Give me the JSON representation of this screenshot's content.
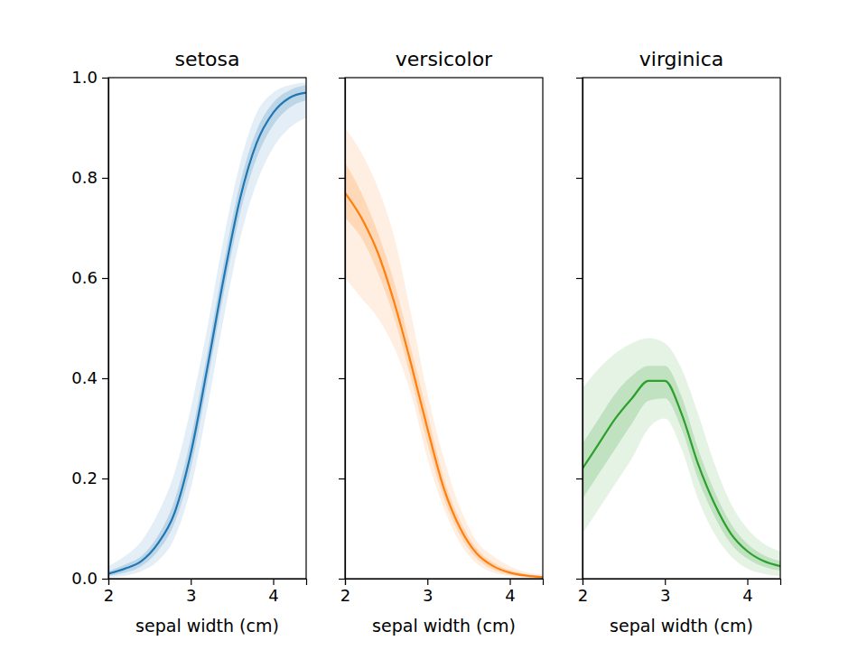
{
  "chart_data": [
    {
      "type": "line",
      "title": "setosa",
      "x_label": "sepal width (cm)",
      "color": "#1f77b4",
      "x": [
        2.0,
        2.2,
        2.4,
        2.6,
        2.8,
        3.0,
        3.2,
        3.4,
        3.6,
        3.8,
        4.0,
        4.2,
        4.4
      ],
      "values": [
        0.01,
        0.02,
        0.035,
        0.07,
        0.13,
        0.25,
        0.42,
        0.6,
        0.76,
        0.87,
        0.93,
        0.96,
        0.97
      ],
      "inner_low": [
        0.005,
        0.012,
        0.025,
        0.055,
        0.11,
        0.22,
        0.39,
        0.57,
        0.73,
        0.84,
        0.905,
        0.94,
        0.955
      ],
      "inner_high": [
        0.015,
        0.028,
        0.045,
        0.085,
        0.155,
        0.28,
        0.45,
        0.63,
        0.79,
        0.895,
        0.95,
        0.975,
        0.985
      ],
      "outer_low": [
        0.002,
        0.006,
        0.015,
        0.035,
        0.08,
        0.18,
        0.34,
        0.52,
        0.68,
        0.79,
        0.86,
        0.9,
        0.92
      ],
      "outer_high": [
        0.025,
        0.045,
        0.075,
        0.13,
        0.21,
        0.34,
        0.5,
        0.68,
        0.83,
        0.93,
        0.97,
        0.985,
        0.99
      ],
      "xlim": [
        2.0,
        4.4
      ],
      "ylim": [
        0,
        1
      ],
      "xticks": [
        2,
        3,
        4
      ],
      "yticks": [
        {
          "value": 0,
          "label": "0.0"
        },
        0.2,
        0.4,
        0.6,
        0.8,
        {
          "value": 1,
          "label": "1.0"
        }
      ]
    },
    {
      "type": "line",
      "title": "versicolor",
      "x_label": "sepal width (cm)",
      "color": "#ff7f0e",
      "x": [
        2.0,
        2.2,
        2.4,
        2.6,
        2.8,
        3.0,
        3.2,
        3.4,
        3.6,
        3.8,
        4.0,
        4.2,
        4.4
      ],
      "values": [
        0.77,
        0.72,
        0.65,
        0.55,
        0.43,
        0.3,
        0.18,
        0.1,
        0.05,
        0.025,
        0.012,
        0.006,
        0.003
      ],
      "inner_low": [
        0.72,
        0.68,
        0.61,
        0.52,
        0.4,
        0.27,
        0.16,
        0.085,
        0.04,
        0.018,
        0.008,
        0.004,
        0.002
      ],
      "inner_high": [
        0.83,
        0.77,
        0.69,
        0.59,
        0.46,
        0.33,
        0.2,
        0.115,
        0.06,
        0.032,
        0.017,
        0.009,
        0.005
      ],
      "outer_low": [
        0.6,
        0.56,
        0.52,
        0.46,
        0.37,
        0.24,
        0.14,
        0.07,
        0.03,
        0.012,
        0.005,
        0.002,
        0.001
      ],
      "outer_high": [
        0.9,
        0.85,
        0.78,
        0.68,
        0.53,
        0.37,
        0.24,
        0.14,
        0.075,
        0.045,
        0.025,
        0.013,
        0.008
      ],
      "xlim": [
        2.0,
        4.4
      ],
      "ylim": [
        0,
        1
      ],
      "xticks": [
        2,
        3,
        4
      ],
      "yticks": [
        0,
        0.2,
        0.4,
        0.6,
        0.8,
        1
      ],
      "tick_labels": "x"
    },
    {
      "type": "line",
      "title": "virginica",
      "x_label": "sepal width (cm)",
      "color": "#2ca02c",
      "x": [
        2.0,
        2.2,
        2.4,
        2.6,
        2.8,
        3.0,
        3.2,
        3.4,
        3.6,
        3.8,
        4.0,
        4.2,
        4.4
      ],
      "values": [
        0.22,
        0.27,
        0.32,
        0.36,
        0.395,
        0.395,
        0.33,
        0.23,
        0.15,
        0.09,
        0.055,
        0.035,
        0.025
      ],
      "inner_low": [
        0.16,
        0.21,
        0.26,
        0.31,
        0.355,
        0.36,
        0.3,
        0.2,
        0.125,
        0.07,
        0.04,
        0.024,
        0.016
      ],
      "inner_high": [
        0.27,
        0.32,
        0.37,
        0.405,
        0.425,
        0.425,
        0.365,
        0.26,
        0.175,
        0.11,
        0.07,
        0.047,
        0.035
      ],
      "outer_low": [
        0.09,
        0.14,
        0.19,
        0.24,
        0.3,
        0.32,
        0.26,
        0.16,
        0.09,
        0.045,
        0.02,
        0.01,
        0.005
      ],
      "outer_high": [
        0.38,
        0.42,
        0.45,
        0.47,
        0.48,
        0.47,
        0.42,
        0.33,
        0.23,
        0.15,
        0.1,
        0.07,
        0.055
      ],
      "xlim": [
        2.0,
        4.4
      ],
      "ylim": [
        0,
        1
      ],
      "xticks": [
        2,
        3,
        4
      ],
      "yticks": [
        0,
        0.2,
        0.4,
        0.6,
        0.8,
        1
      ],
      "tick_labels": "x"
    }
  ]
}
